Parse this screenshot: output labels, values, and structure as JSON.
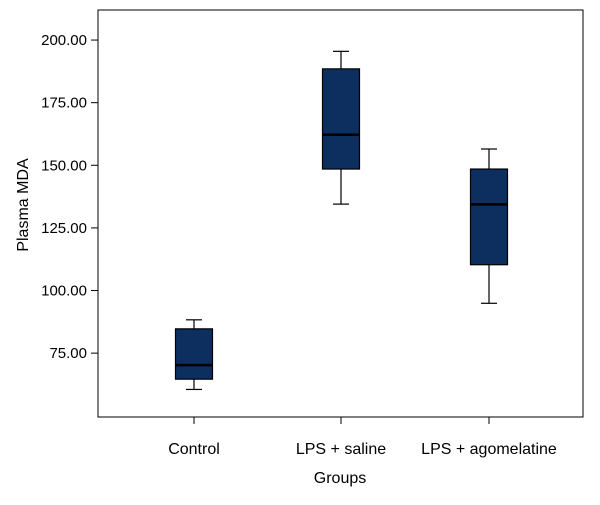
{
  "chart_data": {
    "type": "box",
    "title": "",
    "xlabel": "Groups",
    "ylabel": "Plasma MDA",
    "ylim": [
      49.5,
      212
    ],
    "yticks": [
      75,
      100,
      125,
      150,
      175,
      200
    ],
    "ytick_labels": [
      "75.00",
      "100.00",
      "125.00",
      "150.00",
      "175.00",
      "200.00"
    ],
    "categories": [
      "Control",
      "LPS + saline",
      "LPS + agomelatine"
    ],
    "boxes": [
      {
        "name": "Control",
        "min": 60.5,
        "q1": 64.6,
        "median": 70.2,
        "q3": 84.7,
        "max": 88.3
      },
      {
        "name": "LPS + saline",
        "min": 134.5,
        "q1": 148.5,
        "median": 162.2,
        "q3": 188.5,
        "max": 195.5
      },
      {
        "name": "LPS + agomelatine",
        "min": 94.9,
        "q1": 110.3,
        "median": 134.4,
        "q3": 148.5,
        "max": 156.5
      }
    ],
    "grid": false,
    "legend": "none",
    "colors": {
      "box_fill": "#0c2f5f",
      "line": "#000000",
      "axis": "#000000"
    }
  }
}
